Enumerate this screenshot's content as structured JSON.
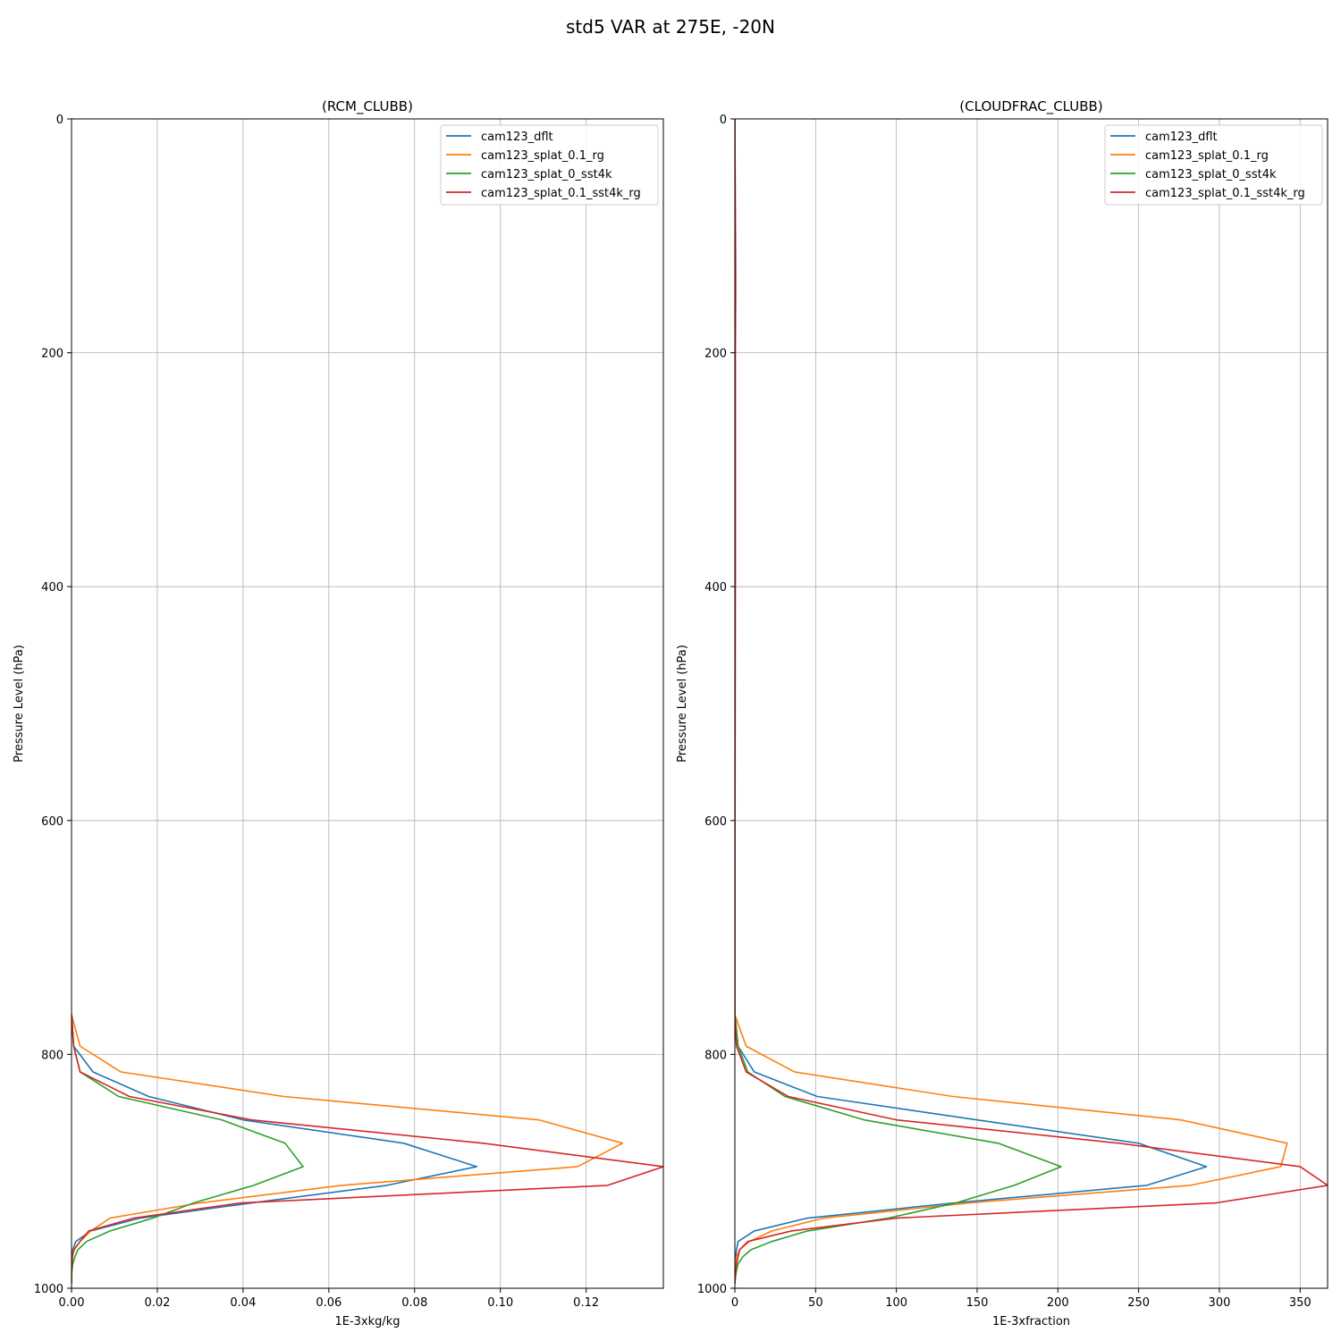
{
  "suptitle": "std5 VAR at 275E, -20N",
  "colors": {
    "cam123_dflt": "#1f77b4",
    "cam123_splat_0.1_rg": "#ff7f0e",
    "cam123_splat_0_sst4k": "#2ca02c",
    "cam123_splat_0.1_sst4k_rg": "#d62728"
  },
  "legend_position": "upper right",
  "grid": true,
  "chart_data": [
    {
      "type": "line",
      "title": "(RCM_CLUBB)",
      "xlabel": "1E-3xkg/kg",
      "ylabel": "Pressure Level (hPa)",
      "xlim": [
        0,
        0.138
      ],
      "ylim": [
        1000,
        0
      ],
      "y_inverted": true,
      "xticks": [
        "0.00",
        "0.02",
        "0.04",
        "0.06",
        "0.08",
        "0.10",
        "0.12"
      ],
      "xtick_values": [
        0,
        0.02,
        0.04,
        0.06,
        0.08,
        0.1,
        0.12
      ],
      "yticks": [
        "0",
        "200",
        "400",
        "600",
        "800",
        "1000"
      ],
      "ytick_values": [
        0,
        200,
        400,
        600,
        800,
        1000
      ],
      "levels": [
        766,
        793,
        815,
        836,
        856,
        876,
        896,
        912,
        927,
        940,
        951,
        960,
        967,
        973,
        979,
        985,
        991,
        996
      ],
      "series": [
        {
          "name": "cam123_dflt",
          "values": [
            0,
            0.0005,
            0.005,
            0.018,
            0.04,
            0.0775,
            0.0945,
            0.0735,
            0.042,
            0.016,
            0.0045,
            0.001,
            0.0003,
            0.0001,
            0,
            0,
            0,
            0
          ]
        },
        {
          "name": "cam123_splat_0.1_rg",
          "values": [
            0,
            0.002,
            0.0115,
            0.0495,
            0.109,
            0.1285,
            0.118,
            0.063,
            0.03,
            0.009,
            0.0045,
            0.002,
            0.0005,
            0.0002,
            0.0001,
            0,
            0,
            0
          ]
        },
        {
          "name": "cam123_splat_0_sst4k",
          "values": [
            0,
            0.0005,
            0.002,
            0.011,
            0.035,
            0.0498,
            0.054,
            0.0425,
            0.0285,
            0.019,
            0.009,
            0.0035,
            0.0015,
            0.0008,
            0.0003,
            0.0001,
            0,
            0
          ]
        },
        {
          "name": "cam123_splat_0.1_sst4k_rg",
          "values": [
            0,
            0.0005,
            0.002,
            0.0135,
            0.042,
            0.096,
            0.138,
            0.125,
            0.0395,
            0.0145,
            0.004,
            0.002,
            0.0006,
            0.0002,
            0.0001,
            0,
            0,
            0
          ]
        }
      ]
    },
    {
      "type": "line",
      "title": "(CLOUDFRAC_CLUBB)",
      "xlabel": "1E-3xfraction",
      "ylabel": "Pressure Level (hPa)",
      "xlim": [
        0,
        367
      ],
      "ylim": [
        1000,
        0
      ],
      "y_inverted": true,
      "xticks": [
        "0",
        "50",
        "100",
        "150",
        "200",
        "250",
        "300",
        "350"
      ],
      "xtick_values": [
        0,
        50,
        100,
        150,
        200,
        250,
        300,
        350
      ],
      "yticks": [
        "0",
        "200",
        "400",
        "600",
        "800",
        "1000"
      ],
      "ytick_values": [
        0,
        200,
        400,
        600,
        800,
        1000
      ],
      "levels": [
        0,
        130,
        150,
        200,
        300,
        400,
        500,
        600,
        700,
        766,
        793,
        815,
        836,
        856,
        876,
        896,
        912,
        927,
        940,
        951,
        960,
        967,
        973,
        979,
        985,
        991,
        996
      ],
      "series": [
        {
          "name": "cam123_dflt",
          "values": [
            0,
            0,
            0,
            0,
            0,
            0,
            0,
            0,
            0,
            0,
            2,
            12,
            51,
            150,
            250,
            292,
            255,
            136,
            45,
            12,
            2,
            1,
            0.5,
            0.2,
            0.1,
            0,
            0
          ]
        },
        {
          "name": "cam123_splat_0.1_rg",
          "values": [
            0,
            0,
            0,
            0,
            0,
            0,
            0,
            0,
            0,
            0,
            7,
            37,
            135,
            276,
            342,
            338,
            282,
            145,
            55,
            23,
            9,
            3,
            1,
            0.3,
            0.1,
            0,
            0
          ]
        },
        {
          "name": "cam123_splat_0_sst4k",
          "values": [
            0,
            0,
            0,
            0,
            0,
            0,
            0,
            0,
            0,
            0,
            2,
            8,
            31,
            80,
            163,
            202,
            173,
            137,
            95,
            45,
            23,
            10,
            5,
            2,
            1,
            0.3,
            0
          ]
        },
        {
          "name": "cam123_splat_0.1_sst4k_rg",
          "values": [
            0,
            0.5,
            0.5,
            0.3,
            0.3,
            0.3,
            0.2,
            0.1,
            0,
            0,
            1,
            7,
            33,
            100,
            238,
            350,
            367,
            298,
            100,
            35,
            8,
            3,
            2,
            1,
            0.5,
            0.2,
            0
          ]
        }
      ]
    }
  ]
}
